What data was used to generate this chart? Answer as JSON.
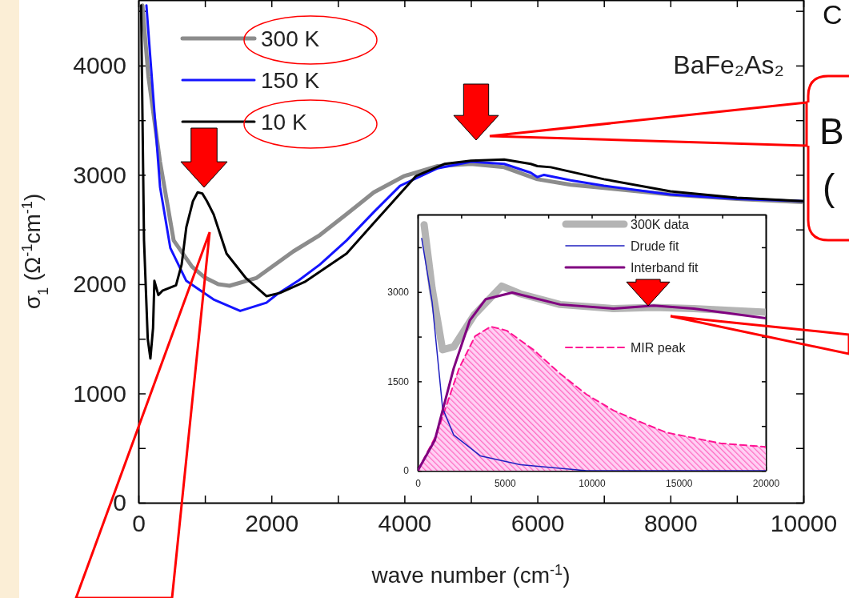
{
  "chart_data": [
    {
      "type": "line",
      "xlabel": "wave number (cm$^{-1}$)",
      "ylabel": "σ$_{1}$ (Ω$^{-1}$cm$^{-1}$)",
      "xlim": [
        0,
        10000
      ],
      "ylim": [
        0,
        4600
      ],
      "xticks": [
        0,
        {
          "value": 1000,
          "label": null
        },
        2000,
        {
          "value": 3000,
          "label": null
        },
        4000,
        {
          "value": 5000,
          "label": null
        },
        6000,
        {
          "value": 7000,
          "label": null
        },
        8000,
        {
          "value": 9000,
          "label": null
        },
        10000
      ],
      "yticks": [
        0,
        {
          "value": 500,
          "label": null
        },
        1000,
        {
          "value": 1500,
          "label": null
        },
        2000,
        {
          "value": 2500,
          "label": null
        },
        3000,
        {
          "value": 3500,
          "label": null
        },
        4000,
        {
          "value": 4500,
          "label": null
        }
      ],
      "legend": "top left",
      "grid": false,
      "annotations": [
        "BaFe₂As₂"
      ],
      "series": [
        {
          "name": "300 K",
          "color": "#8c8c8c",
          "x": [
            60,
            150,
            325,
            530,
            806,
            1000,
            1200,
            1370,
            1770,
            2330,
            2730,
            3130,
            3540,
            4000,
            4500,
            5000,
            5500,
            6000,
            6500,
            7000,
            8000,
            9000,
            10000
          ],
          "values": [
            4550,
            3900,
            3120,
            2400,
            2160,
            2060,
            2000,
            1985,
            2055,
            2300,
            2450,
            2640,
            2840,
            2990,
            3080,
            3100,
            3070,
            2960,
            2910,
            2880,
            2820,
            2780,
            2750
          ]
        },
        {
          "name": "150 K",
          "color": "#1414ff",
          "x": [
            120,
            205,
            325,
            480,
            720,
            1130,
            1530,
            1925,
            2090,
            2410,
            2730,
            3130,
            3540,
            3935,
            4500,
            5000,
            5500,
            5900,
            6000,
            6100,
            6500,
            7000,
            8000,
            9000,
            10000
          ],
          "values": [
            4550,
            3860,
            2890,
            2330,
            2030,
            1860,
            1755,
            1830,
            1910,
            2034,
            2180,
            2400,
            2660,
            2900,
            3060,
            3120,
            3100,
            3020,
            2980,
            3000,
            2950,
            2900,
            2820,
            2780,
            2760
          ]
        },
        {
          "name": "10 K",
          "color": "#000000",
          "x": [
            40,
            84,
            140,
            180,
            220,
            240,
            300,
            360,
            565,
            650,
            720,
            820,
            890,
            960,
            1030,
            1130,
            1325,
            1610,
            1925,
            2130,
            2500,
            3130,
            3540,
            4175,
            4600,
            5000,
            5500,
            5900,
            6000,
            6200,
            7000,
            8000,
            9000,
            10000
          ],
          "values": [
            4550,
            2400,
            1500,
            1320,
            1600,
            2030,
            1900,
            1940,
            1990,
            2180,
            2520,
            2760,
            2840,
            2830,
            2760,
            2640,
            2280,
            2060,
            1890,
            1920,
            2020,
            2280,
            2560,
            2990,
            3100,
            3130,
            3140,
            3100,
            3080,
            3070,
            2960,
            2850,
            2790,
            2760
          ]
        }
      ]
    },
    {
      "type": "line",
      "xlim": [
        0,
        20000
      ],
      "ylim": [
        0,
        4300
      ],
      "xticks": [
        0,
        {
          "value": 2500,
          "label": null
        },
        5000,
        {
          "value": 7500,
          "label": null
        },
        10000,
        {
          "value": 12500,
          "label": null
        },
        15000,
        {
          "value": 17500,
          "label": null
        },
        20000
      ],
      "yticks": [
        0,
        {
          "value": 750,
          "label": null
        },
        1500,
        {
          "value": 2250,
          "label": null
        },
        3000,
        {
          "value": 3750,
          "label": null
        }
      ],
      "legend": "top right",
      "grid": false,
      "series": [
        {
          "name": "300K data",
          "color": "#b4b4b4",
          "x": [
            368,
            830,
            1430,
            2070,
            3260,
            4830,
            5890,
            8180,
            11260,
            13560,
            15860,
            20000
          ],
          "values": [
            4130,
            3060,
            2030,
            2080,
            2620,
            3100,
            2970,
            2790,
            2720,
            2740,
            2720,
            2660
          ]
        },
        {
          "name": "Drude fit",
          "color": "#2020c0",
          "x": [
            230,
            830,
            1430,
            2070,
            3600,
            5900,
            9700,
            20000
          ],
          "values": [
            3900,
            2830,
            1050,
            600,
            250,
            100,
            0,
            0
          ]
        },
        {
          "name": "Interband fit",
          "color": "#800080",
          "x": [
            0,
            980,
            2070,
            2990,
            3910,
            5430,
            8180,
            11260,
            13560,
            15860,
            20000
          ],
          "values": [
            0,
            510,
            1720,
            2520,
            2880,
            2990,
            2790,
            2720,
            2770,
            2720,
            2560
          ]
        },
        {
          "name": "MIR peak",
          "type": "area",
          "line_style": "dashed",
          "color": "#ff1493",
          "x": [
            0,
            1070,
            2380,
            3300,
            4200,
            5130,
            6650,
            8180,
            9700,
            11260,
            12780,
            14300,
            15860,
            17400,
            20000
          ],
          "values": [
            0,
            600,
            1720,
            2260,
            2420,
            2350,
            2030,
            1630,
            1280,
            1010,
            820,
            640,
            550,
            460,
            400
          ]
        }
      ]
    },
    {
      "type": "other",
      "annotations": [
        "B",
        "(",
        "C"
      ]
    }
  ]
}
